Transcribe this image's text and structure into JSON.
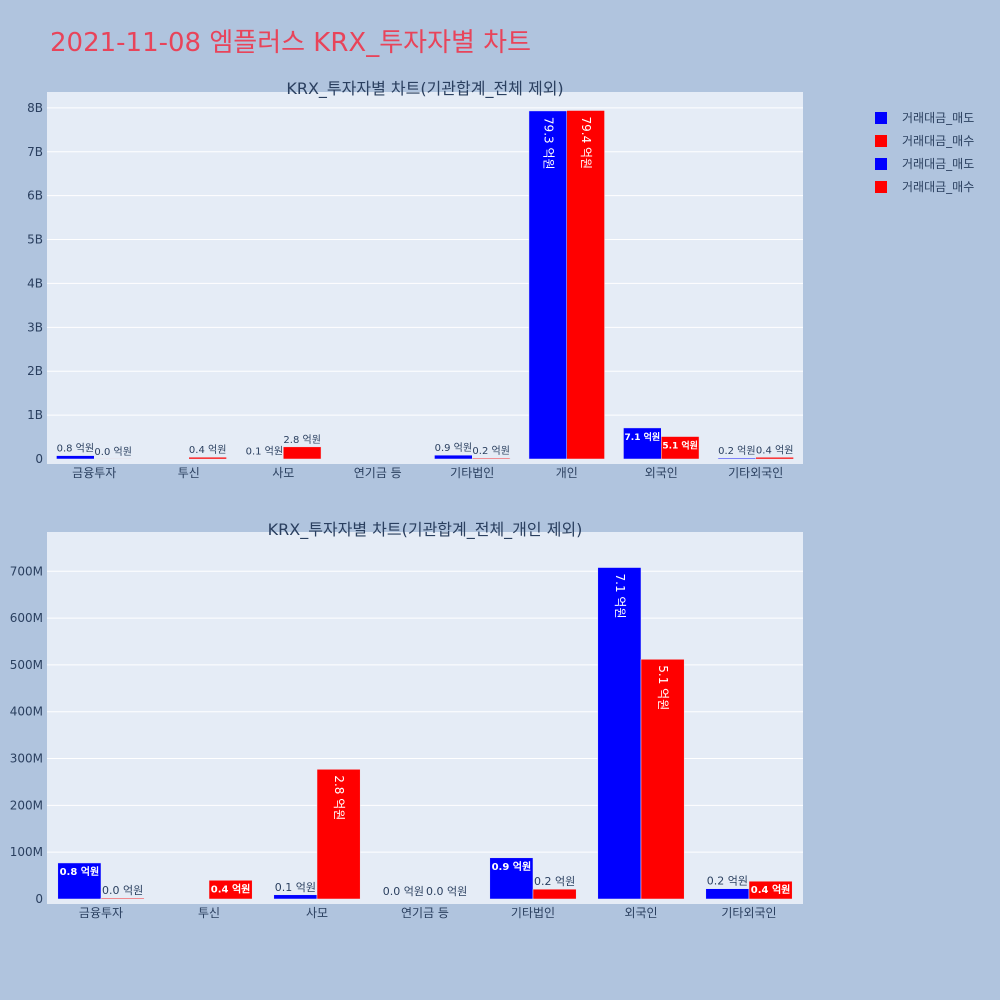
{
  "title": "2021-11-08 엠플러스 KRX_투자자별 차트",
  "colors": {
    "sell": "#0000ff",
    "buy": "#ff0000",
    "plot_bg": "#e5ecf6",
    "paper_bg": "#b0c4de",
    "title": "#e8445a"
  },
  "legend": [
    {
      "label": "거래대금_매도",
      "color": "#0000ff"
    },
    {
      "label": "거래대금_매수",
      "color": "#ff0000"
    },
    {
      "label": "거래대금_매도",
      "color": "#0000ff"
    },
    {
      "label": "거래대금_매수",
      "color": "#ff0000"
    }
  ],
  "chart_data": [
    {
      "type": "bar",
      "title": "KRX_투자자별 차트(기관합계_전체 제외)",
      "categories": [
        "금융투자",
        "투신",
        "사모",
        "연기금 등",
        "기타법인",
        "개인",
        "외국인",
        "기타외국인"
      ],
      "ylim": [
        0,
        8000000000
      ],
      "yticks": [
        0,
        1000000000,
        2000000000,
        3000000000,
        4000000000,
        5000000000,
        6000000000,
        7000000000,
        8000000000
      ],
      "ytick_labels": [
        "0",
        "1B",
        "2B",
        "3B",
        "4B",
        "5B",
        "6B",
        "7B",
        "8B"
      ],
      "grid": true,
      "series": [
        {
          "name": "거래대금_매도",
          "color": "#0000ff",
          "values": [
            77000000,
            0,
            9000000,
            0,
            88000000,
            7930000000,
            708000000,
            22000000
          ],
          "labels": [
            "0.8 억원",
            "",
            "0.1 억원",
            "",
            "0.9 억원",
            "79.3 억원",
            "7.1 억원",
            "0.2 억원"
          ]
        },
        {
          "name": "거래대금_매수",
          "color": "#ff0000",
          "values": [
            2000000,
            40000000,
            277000000,
            0,
            21000000,
            7940000000,
            512000000,
            38000000
          ],
          "labels": [
            "0.0 억원",
            "0.4 억원",
            "2.8 억원",
            "",
            "0.2 억원",
            "79.4 억원",
            "5.1 억원",
            "0.4 억원"
          ]
        }
      ]
    },
    {
      "type": "bar",
      "title": "KRX_투자자별 차트(기관합계_전체_개인 제외)",
      "categories": [
        "금융투자",
        "투신",
        "사모",
        "연기금 등",
        "기타법인",
        "외국인",
        "기타외국인"
      ],
      "ylim": [
        0,
        750000000
      ],
      "yticks": [
        0,
        100000000,
        200000000,
        300000000,
        400000000,
        500000000,
        600000000,
        700000000
      ],
      "ytick_labels": [
        "0",
        "100M",
        "200M",
        "300M",
        "400M",
        "500M",
        "600M",
        "700M"
      ],
      "grid": true,
      "series": [
        {
          "name": "거래대금_매도",
          "color": "#0000ff",
          "values": [
            77000000,
            0,
            9000000,
            0,
            88000000,
            708000000,
            22000000
          ],
          "labels": [
            "0.8 억원",
            "",
            "0.1 억원",
            "0.0 억원",
            "0.9 억원",
            "7.1 억원",
            "0.2 억원"
          ]
        },
        {
          "name": "거래대금_매수",
          "color": "#ff0000",
          "values": [
            2000000,
            40000000,
            277000000,
            0,
            21000000,
            512000000,
            38000000
          ],
          "labels": [
            "0.0 억원",
            "0.4 억원",
            "2.8 억원",
            "0.0 억원",
            "0.2 억원",
            "5.1 억원",
            "0.4 억원"
          ]
        }
      ]
    }
  ]
}
